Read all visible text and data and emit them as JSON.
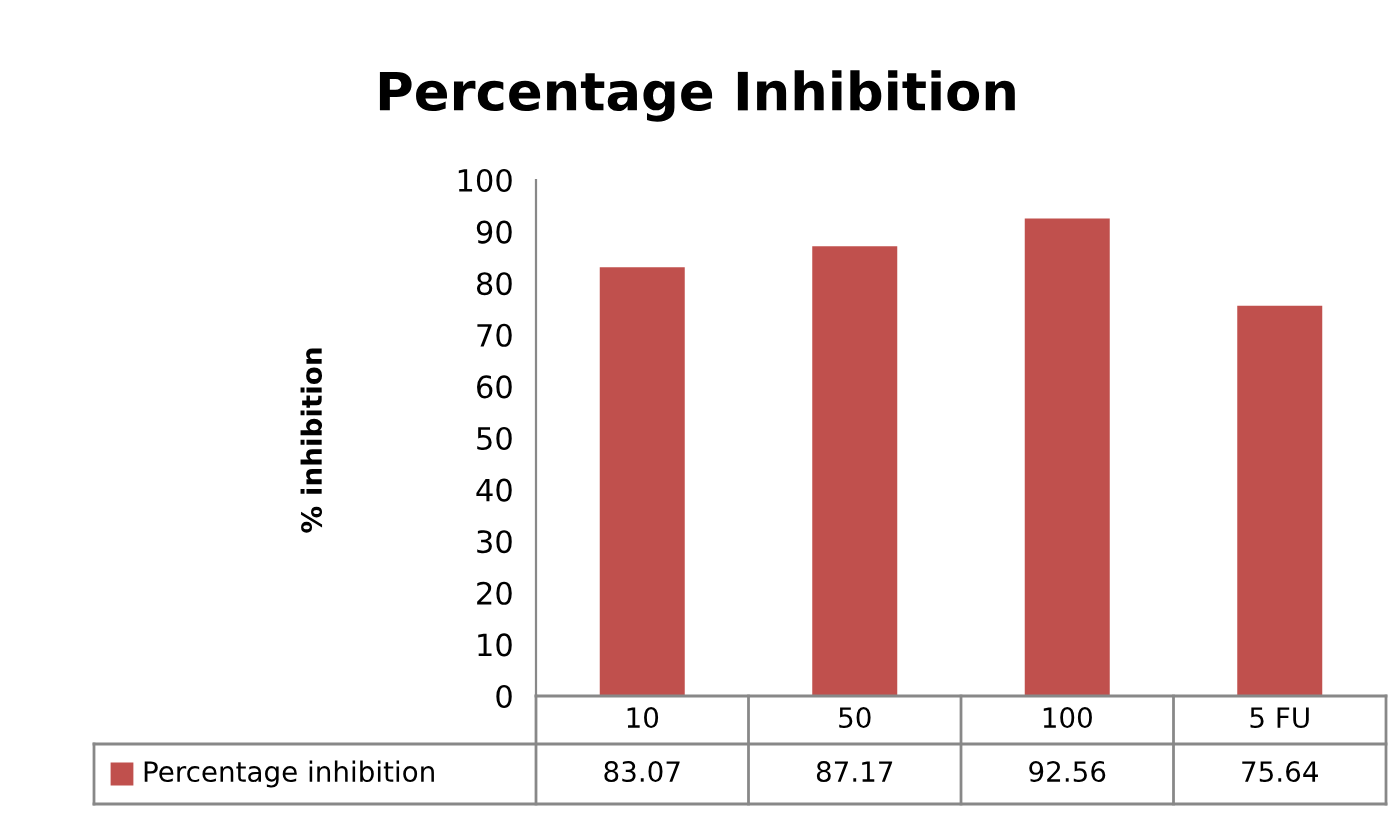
{
  "chart_data": {
    "type": "bar",
    "title": "Percentage Inhibition",
    "ylabel": "% inhibition",
    "categories": [
      "10",
      "50",
      "100",
      "5 FU"
    ],
    "series": [
      {
        "name": "Percentage inhibition",
        "color": "#c0504d",
        "values": [
          83.07,
          87.17,
          92.56,
          75.64
        ]
      }
    ],
    "ylim": [
      0,
      100
    ],
    "yticks": [
      0,
      10,
      20,
      30,
      40,
      50,
      60,
      70,
      80,
      90,
      100
    ],
    "grid": false,
    "legend": "bottom",
    "data_labels": true
  }
}
